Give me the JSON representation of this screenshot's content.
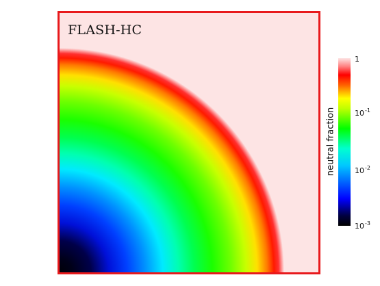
{
  "plot": {
    "title": "FLASH-HC"
  },
  "colorbar": {
    "label": "neutral fraction",
    "ticks": [
      {
        "base": "1",
        "exp": ""
      },
      {
        "base": "10",
        "exp": "-1"
      },
      {
        "base": "10",
        "exp": "-2"
      },
      {
        "base": "10",
        "exp": "-3"
      }
    ],
    "scale": "log",
    "range": [
      0.0006,
      1
    ],
    "colors": [
      "#000000",
      "#0000ff",
      "#00ffff",
      "#00ff00",
      "#ffff00",
      "#ff0000",
      "#fde4e4"
    ]
  },
  "colors": {
    "frame": "#e8191c",
    "background": "#fde4e4"
  }
}
